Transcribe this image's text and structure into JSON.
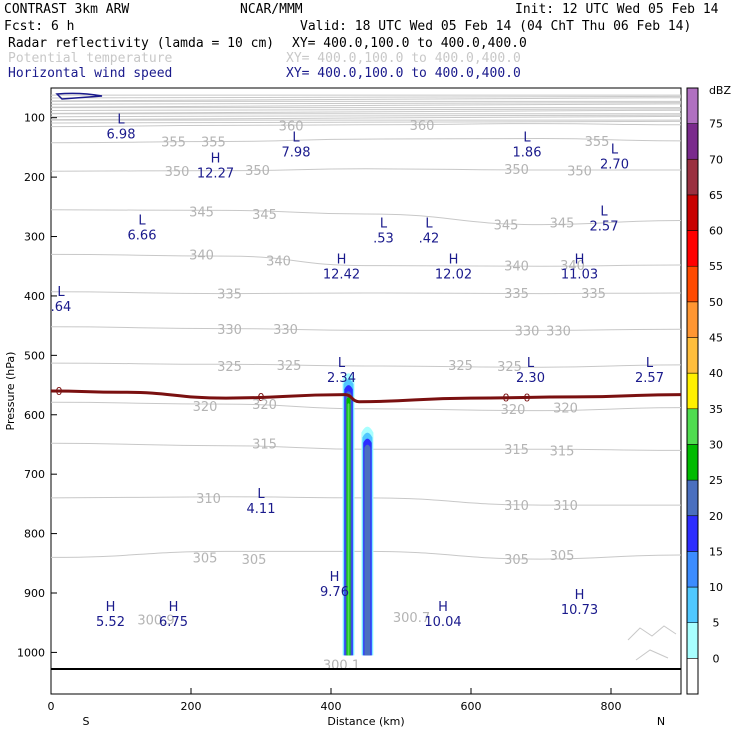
{
  "header": {
    "line1_left": "CONTRAST  3km ARW",
    "line1_mid": "NCAR/MMM",
    "line1_right": "Init: 12 UTC Wed 05 Feb 14",
    "line2_left": "Fcst:    6 h",
    "line2_right": "Valid: 18 UTC Wed 05 Feb 14 (04 ChT Thu 06 Feb 14)",
    "fields": [
      {
        "name": "Radar reflectivity (lamda = 10 cm)",
        "xy": "XY= 400.0,100.0 to 400.0,400.0",
        "color": "#000000"
      },
      {
        "name": "Potential temperature",
        "xy": "XY= 400.0,100.0 to 400.0,400.0",
        "color": "#c8c8c8"
      },
      {
        "name": "Horizontal wind speed",
        "xy": "XY= 400.0,100.0 to 400.0,400.0",
        "color": "#1a1a8c"
      }
    ]
  },
  "chart_data": {
    "type": "cross-section",
    "xlabel": "Distance (km)",
    "ylabel": "Pressure (hPa)",
    "xlim": [
      0,
      900
    ],
    "ylim": [
      1070,
      50
    ],
    "x_ticks": [
      0,
      200,
      400,
      600,
      800
    ],
    "y_ticks": [
      100,
      200,
      300,
      400,
      500,
      600,
      700,
      800,
      900,
      1000
    ],
    "x_end_labels": {
      "left": "S",
      "right": "N"
    },
    "theta_isolines": [
      {
        "value": 360,
        "p": [
          115,
          113,
          112,
          110,
          112
        ]
      },
      {
        "value": 355,
        "p": [
          142,
          140,
          136,
          135,
          139
        ]
      },
      {
        "value": 350,
        "p": [
          190,
          189,
          186,
          188,
          188
        ]
      },
      {
        "value": 345,
        "p": [
          255,
          256,
          262,
          280,
          273
        ]
      },
      {
        "value": 340,
        "p": [
          330,
          333,
          349,
          350,
          348
        ]
      },
      {
        "value": 335,
        "p": [
          393,
          396,
          395,
          396,
          395
        ]
      },
      {
        "value": 330,
        "p": [
          452,
          455,
          458,
          458,
          456
        ]
      },
      {
        "value": 325,
        "p": [
          513,
          515,
          518,
          520,
          516
        ]
      },
      {
        "value": 320,
        "p": [
          579,
          582,
          590,
          593,
          588
        ]
      },
      {
        "value": 315,
        "p": [
          648,
          652,
          658,
          658,
          660
        ]
      },
      {
        "value": 310,
        "p": [
          740,
          738,
          740,
          752,
          752
        ]
      },
      {
        "value": 305,
        "p": [
          840,
          830,
          830,
          843,
          836
        ]
      }
    ],
    "theta_isoline_x": [
      0,
      250,
      450,
      700,
      900
    ],
    "theta_labels": [
      {
        "text": "360",
        "x": 343,
        "p": 113
      },
      {
        "text": "360",
        "x": 530,
        "p": 112
      },
      {
        "text": "355",
        "x": 175,
        "p": 140
      },
      {
        "text": "355",
        "x": 232,
        "p": 140
      },
      {
        "text": "355",
        "x": 780,
        "p": 139
      },
      {
        "text": "350",
        "x": 180,
        "p": 190
      },
      {
        "text": "350",
        "x": 295,
        "p": 188
      },
      {
        "text": "350",
        "x": 665,
        "p": 186
      },
      {
        "text": "350",
        "x": 755,
        "p": 189
      },
      {
        "text": "345",
        "x": 215,
        "p": 258
      },
      {
        "text": "345",
        "x": 305,
        "p": 262
      },
      {
        "text": "345",
        "x": 650,
        "p": 280
      },
      {
        "text": "345",
        "x": 730,
        "p": 276
      },
      {
        "text": "340",
        "x": 215,
        "p": 330
      },
      {
        "text": "340",
        "x": 325,
        "p": 340
      },
      {
        "text": "340",
        "x": 665,
        "p": 349
      },
      {
        "text": "340",
        "x": 745,
        "p": 348
      },
      {
        "text": "335",
        "x": 255,
        "p": 396
      },
      {
        "text": "335",
        "x": 665,
        "p": 395
      },
      {
        "text": "335",
        "x": 775,
        "p": 395
      },
      {
        "text": "330",
        "x": 255,
        "p": 456
      },
      {
        "text": "330",
        "x": 335,
        "p": 456
      },
      {
        "text": "330",
        "x": 680,
        "p": 458
      },
      {
        "text": "330",
        "x": 725,
        "p": 458
      },
      {
        "text": "325",
        "x": 255,
        "p": 518
      },
      {
        "text": "325",
        "x": 340,
        "p": 516
      },
      {
        "text": "325",
        "x": 585,
        "p": 516
      },
      {
        "text": "325",
        "x": 655,
        "p": 518
      },
      {
        "text": "320",
        "x": 220,
        "p": 585
      },
      {
        "text": "320",
        "x": 305,
        "p": 582
      },
      {
        "text": "320",
        "x": 660,
        "p": 590
      },
      {
        "text": "320",
        "x": 735,
        "p": 588
      },
      {
        "text": "315",
        "x": 305,
        "p": 648
      },
      {
        "text": "315",
        "x": 665,
        "p": 658
      },
      {
        "text": "315",
        "x": 730,
        "p": 660
      },
      {
        "text": "310",
        "x": 225,
        "p": 740
      },
      {
        "text": "310",
        "x": 665,
        "p": 752
      },
      {
        "text": "310",
        "x": 735,
        "p": 752
      },
      {
        "text": "305",
        "x": 220,
        "p": 840
      },
      {
        "text": "305",
        "x": 290,
        "p": 843
      },
      {
        "text": "305",
        "x": 665,
        "p": 843
      },
      {
        "text": "305",
        "x": 730,
        "p": 836
      },
      {
        "text": "300.9",
        "x": 150,
        "p": 945
      },
      {
        "text": "300.7",
        "x": 515,
        "p": 940
      },
      {
        "text": "300.1",
        "x": 415,
        "p": 1020
      }
    ],
    "freezing_level": {
      "label": "0",
      "x": [
        0,
        100,
        250,
        420,
        440,
        600,
        750,
        900
      ],
      "p": [
        560,
        562,
        572,
        566,
        578,
        572,
        570,
        566
      ]
    },
    "wind_extrema": [
      {
        "kind": "L",
        "value": "6.98",
        "x": 100,
        "p": 110
      },
      {
        "kind": "L",
        "value": "7.98",
        "x": 350,
        "p": 140
      },
      {
        "kind": "L",
        "value": "1.86",
        "x": 680,
        "p": 140
      },
      {
        "kind": "L",
        "value": "2.70",
        "x": 805,
        "p": 160
      },
      {
        "kind": "H",
        "value": "12.27",
        "x": 235,
        "p": 175
      },
      {
        "kind": "L",
        "value": "6.66",
        "x": 130,
        "p": 280
      },
      {
        "kind": "L",
        "value": ".53",
        "x": 475,
        "p": 285
      },
      {
        "kind": "L",
        "value": ".42",
        "x": 540,
        "p": 285
      },
      {
        "kind": "L",
        "value": "2.57",
        "x": 790,
        "p": 265
      },
      {
        "kind": "H",
        "value": "12.42",
        "x": 415,
        "p": 345
      },
      {
        "kind": "H",
        "value": "12.02",
        "x": 575,
        "p": 345
      },
      {
        "kind": "H",
        "value": "11.03",
        "x": 755,
        "p": 345
      },
      {
        "kind": "L",
        "value": ".64",
        "x": 0,
        "p": 400
      },
      {
        "kind": "L",
        "value": "2.34",
        "x": 415,
        "p": 520
      },
      {
        "kind": "L",
        "value": "2.30",
        "x": 685,
        "p": 520
      },
      {
        "kind": "L",
        "value": "2.57",
        "x": 855,
        "p": 520
      },
      {
        "kind": "L",
        "value": "4.11",
        "x": 300,
        "p": 740
      },
      {
        "kind": "H",
        "value": "9.76",
        "x": 405,
        "p": 880
      },
      {
        "kind": "H",
        "value": "5.52",
        "x": 85,
        "p": 930
      },
      {
        "kind": "H",
        "value": "6.75",
        "x": 175,
        "p": 930
      },
      {
        "kind": "H",
        "value": "10.04",
        "x": 560,
        "p": 930
      },
      {
        "kind": "H",
        "value": "10.73",
        "x": 755,
        "p": 910
      }
    ],
    "reflectivity_cells": [
      {
        "x_center": 425,
        "p_top": 530,
        "p_bottom": 1005,
        "max_dbz": 30
      },
      {
        "x_center": 452,
        "p_top": 620,
        "p_bottom": 1005,
        "max_dbz": 20
      }
    ],
    "colorbar": {
      "title": "dBZ",
      "levels": [
        0,
        5,
        10,
        15,
        20,
        25,
        30,
        35,
        40,
        45,
        50,
        55,
        60,
        65,
        70,
        75
      ],
      "colors": [
        "#ffffff",
        "#a8ffff",
        "#50c8ff",
        "#3c8cff",
        "#2d2dff",
        "#4a6fbf",
        "#00bb00",
        "#50dd50",
        "#fff000",
        "#ffbe3c",
        "#ff9632",
        "#ff4a00",
        "#ff0000",
        "#c80000",
        "#9a3040",
        "#7a2a8c",
        "#b070c0"
      ]
    }
  }
}
